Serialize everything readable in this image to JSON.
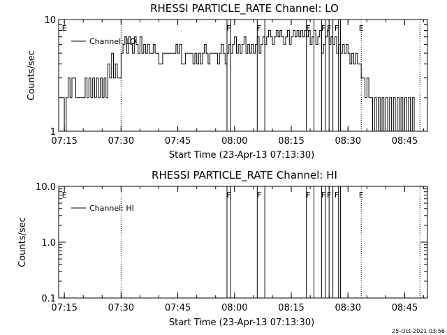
{
  "timestamp": "25-Oct-2021 03:56",
  "chart_data": [
    {
      "type": "line",
      "title": "RHESSI PARTICLE_RATE Channel: LO",
      "xlabel": "Start Time (23-Apr-13 07:13:30)",
      "ylabel": "Counts/sec",
      "yscale": "log",
      "ylim": [
        1,
        10
      ],
      "xlim": [
        "07:13:30",
        "08:51:00"
      ],
      "xticks": [
        "07:15",
        "07:30",
        "07:45",
        "08:00",
        "08:15",
        "08:30",
        "08:45"
      ],
      "yticks": [
        "1",
        "10"
      ],
      "legend": {
        "label": "Channel: LO",
        "placement": "top-left"
      },
      "series": [
        {
          "name": "Channel: LO",
          "x": [
            "07:14:00",
            "07:14:30",
            "07:15:00",
            "07:15:30",
            "07:16:00",
            "07:16:30",
            "07:17:00",
            "07:18:00",
            "07:19:00",
            "07:19:30",
            "07:20:00",
            "07:20:30",
            "07:21:00",
            "07:21:30",
            "07:22:00",
            "07:22:30",
            "07:23:00",
            "07:23:30",
            "07:24:00",
            "07:24:30",
            "07:25:00",
            "07:25:30",
            "07:26:00",
            "07:26:30",
            "07:27:00",
            "07:27:30",
            "07:28:00",
            "07:28:30",
            "07:29:00",
            "07:29:30",
            "07:30:00",
            "07:30:30",
            "07:31:00",
            "07:31:30",
            "07:32:00",
            "07:32:30",
            "07:33:00",
            "07:33:30",
            "07:34:00",
            "07:34:30",
            "07:35:00",
            "07:35:30",
            "07:36:00",
            "07:36:30",
            "07:37:00",
            "07:37:30",
            "07:38:00",
            "07:38:30",
            "07:39:00",
            "07:40:00",
            "07:41:00",
            "07:42:00",
            "07:43:00",
            "07:44:00",
            "07:44:30",
            "07:45:00",
            "07:45:30",
            "07:46:00",
            "07:47:00",
            "07:48:00",
            "07:49:00",
            "07:49:30",
            "07:50:00",
            "07:50:30",
            "07:51:00",
            "07:51:30",
            "07:52:00",
            "07:52:30",
            "07:53:00",
            "07:53:30",
            "07:54:00",
            "07:54:30",
            "07:55:00",
            "07:55:30",
            "07:56:00",
            "07:56:30",
            "07:57:00",
            "07:57:30",
            "07:58:00",
            "07:58:30",
            "07:59:00",
            "07:59:30",
            "08:00:00",
            "08:00:30",
            "08:01:00",
            "08:01:30",
            "08:02:00",
            "08:02:30",
            "08:03:00",
            "08:03:30",
            "08:04:00",
            "08:04:30",
            "08:05:00",
            "08:05:30",
            "08:06:00",
            "08:06:30",
            "08:07:00",
            "08:07:30",
            "08:08:00",
            "08:08:30",
            "08:09:00",
            "08:09:30",
            "08:10:00",
            "08:10:30",
            "08:11:00",
            "08:11:30",
            "08:12:00",
            "08:12:30",
            "08:13:00",
            "08:13:30",
            "08:14:00",
            "08:14:30",
            "08:15:00",
            "08:15:30",
            "08:16:00",
            "08:16:30",
            "08:17:00",
            "08:17:30",
            "08:18:00",
            "08:18:30",
            "08:19:00",
            "08:19:30",
            "08:20:00",
            "08:20:30",
            "08:21:00",
            "08:21:30",
            "08:22:00",
            "08:22:30",
            "08:23:00",
            "08:23:30",
            "08:24:00",
            "08:24:30",
            "08:25:00",
            "08:25:30",
            "08:26:00",
            "08:26:30",
            "08:27:00",
            "08:27:30",
            "08:28:00",
            "08:28:30",
            "08:29:00",
            "08:29:30",
            "08:30:00",
            "08:30:30",
            "08:31:00",
            "08:31:30",
            "08:32:00",
            "08:32:30",
            "08:33:00",
            "08:33:30",
            "08:34:00",
            "08:34:30",
            "08:35:00",
            "08:35:30",
            "08:36:00",
            "08:36:30",
            "08:37:00",
            "08:37:30",
            "08:38:00",
            "08:38:30",
            "08:39:00",
            "08:39:30",
            "08:40:00",
            "08:40:30",
            "08:41:00",
            "08:41:30",
            "08:42:00",
            "08:42:30",
            "08:43:00",
            "08:43:30",
            "08:44:00",
            "08:44:30",
            "08:45:00",
            "08:45:30",
            "08:46:00",
            "08:46:30",
            "08:47:00",
            "08:47:30"
          ],
          "values": [
            2,
            2,
            1,
            2,
            3,
            2,
            3,
            2,
            2,
            2,
            2,
            3,
            2,
            3,
            2,
            3,
            2,
            3,
            2,
            3,
            2,
            3,
            2,
            4,
            3,
            5,
            3,
            4,
            3,
            3,
            5,
            6,
            7,
            5,
            7,
            6,
            5,
            7,
            6,
            5,
            7,
            5,
            6,
            5,
            6,
            5,
            5,
            6,
            5,
            4,
            5,
            5,
            5,
            5,
            6,
            5,
            6,
            4,
            5,
            5,
            4,
            5,
            4,
            5,
            4,
            5,
            6,
            5,
            4,
            5,
            5,
            5,
            5,
            4,
            5,
            6,
            5,
            4,
            5,
            6,
            5,
            6,
            7,
            5,
            6,
            5,
            6,
            7,
            5,
            6,
            5,
            6,
            5,
            6,
            7,
            5,
            6,
            7,
            6,
            7,
            8,
            7,
            6,
            7,
            8,
            7,
            8,
            7,
            6,
            7,
            8,
            6,
            7,
            8,
            7,
            8,
            7,
            8,
            7,
            8,
            7,
            8,
            6,
            7,
            8,
            6,
            7,
            8,
            5,
            6,
            7,
            8,
            6,
            7,
            6,
            7,
            5,
            6,
            5,
            6,
            5,
            6,
            5,
            4,
            5,
            4,
            5,
            4,
            4,
            3,
            3,
            2,
            3,
            2,
            2,
            1,
            2,
            1,
            2,
            1,
            2,
            1,
            2,
            1,
            2,
            1,
            2,
            1,
            2,
            1,
            2,
            1,
            2,
            1,
            2,
            1,
            2,
            1
          ]
        }
      ],
      "annotations": {
        "E": [
          "07:15:00",
          "08:33:30"
        ],
        "F": [
          "07:58:30",
          "08:06:30",
          "08:19:30",
          "08:23:30",
          "08:25:00",
          "08:27:00"
        ],
        "dotted_lines": [
          "07:30:00",
          "08:33:30",
          "08:49:00"
        ],
        "flag_lines": [
          "07:58:00",
          "07:59:00",
          "08:06:00",
          "08:08:00",
          "08:19:00",
          "08:21:00",
          "08:23:00",
          "08:24:00",
          "08:25:00",
          "08:26:00",
          "08:27:30",
          "08:28:00"
        ]
      }
    },
    {
      "type": "line",
      "title": "RHESSI PARTICLE_RATE Channel: HI",
      "xlabel": "Start Time (23-Apr-13 07:13:30)",
      "ylabel": "Counts/sec",
      "yscale": "log",
      "ylim": [
        0.1,
        10
      ],
      "xlim": [
        "07:13:30",
        "08:51:00"
      ],
      "xticks": [
        "07:15",
        "07:30",
        "07:45",
        "08:00",
        "08:15",
        "08:30",
        "08:45"
      ],
      "yticks": [
        "0.1",
        "1.0",
        "10.0"
      ],
      "legend": {
        "label": "Channel: HI",
        "placement": "top-left"
      },
      "series": [
        {
          "name": "Channel: HI",
          "x": [],
          "values": []
        }
      ],
      "annotations": {
        "E": [
          "07:15:00",
          "08:33:30"
        ],
        "F": [
          "07:58:30",
          "08:06:30",
          "08:19:30",
          "08:23:30",
          "08:25:00",
          "08:27:00"
        ],
        "dotted_lines": [
          "07:30:00",
          "08:33:30",
          "08:49:00"
        ],
        "flag_lines": [
          "07:58:00",
          "07:59:00",
          "08:06:00",
          "08:08:00",
          "08:19:00",
          "08:21:00",
          "08:23:00",
          "08:24:00",
          "08:25:00",
          "08:26:00",
          "08:27:30",
          "08:28:00"
        ]
      }
    }
  ]
}
